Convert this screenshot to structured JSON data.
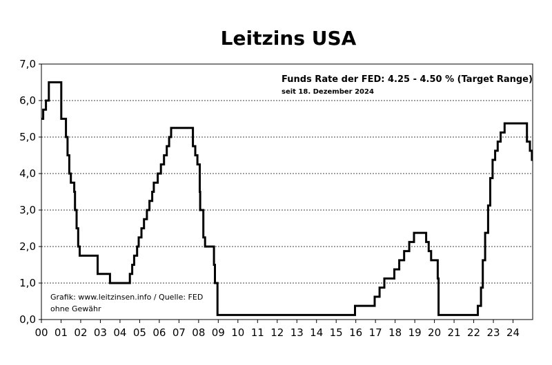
{
  "chart_data": {
    "type": "line",
    "title": "Leitzins USA",
    "xlabel": "",
    "ylabel": "",
    "ylim": [
      0,
      7
    ],
    "y_ticks": [
      "0,0",
      "1,0",
      "2,0",
      "3,0",
      "4,0",
      "5,0",
      "6,0",
      "7,0"
    ],
    "x_ticks": [
      "00",
      "01",
      "02",
      "03",
      "04",
      "05",
      "06",
      "07",
      "08",
      "09",
      "10",
      "11",
      "12",
      "13",
      "14",
      "15",
      "16",
      "17",
      "18",
      "19",
      "20",
      "21",
      "22",
      "23",
      "24"
    ],
    "grid": "horizontal dashed",
    "annotation": {
      "main": "Funds Rate der FED: 4.25 -  4.50 % (Target Range)",
      "sub": "seit 18. Dezember 2024"
    },
    "source_lines": [
      "Grafik: www.leitzinsen.info / Quelle: FED",
      "ohne Gewähr"
    ],
    "line_color": "#000000",
    "series": [
      {
        "values": [
          [
            2000.0,
            5.5
          ],
          [
            2000.09,
            5.75
          ],
          [
            2000.23,
            6.0
          ],
          [
            2000.38,
            6.5
          ],
          [
            2001.01,
            5.5
          ],
          [
            2001.25,
            5.0
          ],
          [
            2001.33,
            4.5
          ],
          [
            2001.42,
            4.0
          ],
          [
            2001.5,
            3.75
          ],
          [
            2001.67,
            3.5
          ],
          [
            2001.71,
            3.0
          ],
          [
            2001.79,
            2.5
          ],
          [
            2001.87,
            2.0
          ],
          [
            2001.95,
            1.75
          ],
          [
            2002.86,
            1.25
          ],
          [
            2003.49,
            1.0
          ],
          [
            2004.5,
            1.25
          ],
          [
            2004.62,
            1.5
          ],
          [
            2004.72,
            1.75
          ],
          [
            2004.87,
            2.0
          ],
          [
            2004.95,
            2.25
          ],
          [
            2005.09,
            2.5
          ],
          [
            2005.22,
            2.75
          ],
          [
            2005.37,
            3.0
          ],
          [
            2005.5,
            3.25
          ],
          [
            2005.64,
            3.5
          ],
          [
            2005.72,
            3.75
          ],
          [
            2005.92,
            4.0
          ],
          [
            2006.08,
            4.25
          ],
          [
            2006.24,
            4.5
          ],
          [
            2006.38,
            4.75
          ],
          [
            2006.5,
            5.0
          ],
          [
            2006.6,
            5.25
          ],
          [
            2007.71,
            4.75
          ],
          [
            2007.83,
            4.5
          ],
          [
            2007.94,
            4.25
          ],
          [
            2008.06,
            3.5
          ],
          [
            2008.08,
            3.0
          ],
          [
            2008.24,
            2.25
          ],
          [
            2008.33,
            2.0
          ],
          [
            2008.78,
            1.5
          ],
          [
            2008.83,
            1.0
          ],
          [
            2008.96,
            0.125
          ],
          [
            2015.96,
            0.375
          ],
          [
            2016.96,
            0.625
          ],
          [
            2017.21,
            0.875
          ],
          [
            2017.45,
            1.125
          ],
          [
            2017.96,
            1.375
          ],
          [
            2018.21,
            1.625
          ],
          [
            2018.46,
            1.875
          ],
          [
            2018.72,
            2.125
          ],
          [
            2018.96,
            2.375
          ],
          [
            2019.58,
            2.125
          ],
          [
            2019.71,
            1.875
          ],
          [
            2019.83,
            1.625
          ],
          [
            2020.17,
            1.125
          ],
          [
            2020.21,
            0.125
          ],
          [
            2022.21,
            0.375
          ],
          [
            2022.37,
            0.875
          ],
          [
            2022.46,
            1.625
          ],
          [
            2022.58,
            2.375
          ],
          [
            2022.73,
            3.125
          ],
          [
            2022.84,
            3.875
          ],
          [
            2022.96,
            4.375
          ],
          [
            2023.09,
            4.625
          ],
          [
            2023.22,
            4.875
          ],
          [
            2023.37,
            5.125
          ],
          [
            2023.57,
            5.375
          ],
          [
            2024.71,
            4.875
          ],
          [
            2024.86,
            4.625
          ],
          [
            2024.96,
            4.375
          ],
          [
            2025.0,
            4.375
          ]
        ]
      }
    ]
  }
}
